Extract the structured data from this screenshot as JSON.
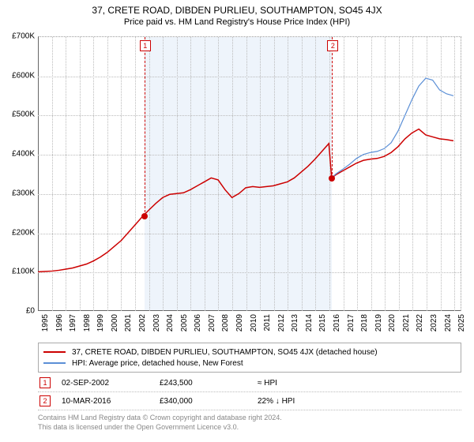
{
  "title_line1": "37, CRETE ROAD, DIBDEN PURLIEU, SOUTHAMPTON, SO45 4JX",
  "title_line2": "Price paid vs. HM Land Registry's House Price Index (HPI)",
  "chart": {
    "type": "line",
    "background_color": "#ffffff",
    "grid_color": "#bbbbbb",
    "band_color": "#eef4fb",
    "ylim": [
      0,
      700000
    ],
    "ytick_step": 100000,
    "ytick_labels": [
      "£0",
      "£100K",
      "£200K",
      "£300K",
      "£400K",
      "£500K",
      "£600K",
      "£700K"
    ],
    "x_years": [
      1995,
      1996,
      1997,
      1998,
      1999,
      2000,
      2001,
      2002,
      2003,
      2004,
      2005,
      2006,
      2007,
      2008,
      2009,
      2010,
      2011,
      2012,
      2013,
      2014,
      2015,
      2016,
      2017,
      2018,
      2019,
      2020,
      2021,
      2022,
      2023,
      2024,
      2025
    ],
    "xlim": [
      1995,
      2025.5
    ],
    "series": [
      {
        "name": "property",
        "color": "#cc0000",
        "width": 1.5,
        "data": [
          [
            1995,
            100000
          ],
          [
            1995.5,
            101000
          ],
          [
            1996,
            102000
          ],
          [
            1996.5,
            104000
          ],
          [
            1997,
            107000
          ],
          [
            1997.5,
            110000
          ],
          [
            1998,
            115000
          ],
          [
            1998.5,
            120000
          ],
          [
            1999,
            128000
          ],
          [
            1999.5,
            138000
          ],
          [
            2000,
            150000
          ],
          [
            2000.5,
            165000
          ],
          [
            2001,
            180000
          ],
          [
            2001.5,
            200000
          ],
          [
            2002,
            220000
          ],
          [
            2002.5,
            240000
          ],
          [
            2003,
            258000
          ],
          [
            2003.5,
            275000
          ],
          [
            2004,
            290000
          ],
          [
            2004.5,
            298000
          ],
          [
            2005,
            300000
          ],
          [
            2005.5,
            302000
          ],
          [
            2006,
            310000
          ],
          [
            2006.5,
            320000
          ],
          [
            2007,
            330000
          ],
          [
            2007.5,
            340000
          ],
          [
            2008,
            335000
          ],
          [
            2008.5,
            310000
          ],
          [
            2009,
            290000
          ],
          [
            2009.5,
            300000
          ],
          [
            2010,
            315000
          ],
          [
            2010.5,
            318000
          ],
          [
            2011,
            316000
          ],
          [
            2011.5,
            318000
          ],
          [
            2012,
            320000
          ],
          [
            2012.5,
            325000
          ],
          [
            2013,
            330000
          ],
          [
            2013.5,
            340000
          ],
          [
            2014,
            355000
          ],
          [
            2014.5,
            370000
          ],
          [
            2015,
            388000
          ],
          [
            2015.5,
            408000
          ],
          [
            2016,
            428000
          ],
          [
            2016.2,
            340000
          ],
          [
            2016.5,
            348000
          ],
          [
            2017,
            358000
          ],
          [
            2017.5,
            368000
          ],
          [
            2018,
            378000
          ],
          [
            2018.5,
            385000
          ],
          [
            2019,
            388000
          ],
          [
            2019.5,
            390000
          ],
          [
            2020,
            395000
          ],
          [
            2020.5,
            405000
          ],
          [
            2021,
            420000
          ],
          [
            2021.5,
            440000
          ],
          [
            2022,
            455000
          ],
          [
            2022.5,
            465000
          ],
          [
            2023,
            450000
          ],
          [
            2023.5,
            445000
          ],
          [
            2024,
            440000
          ],
          [
            2024.5,
            438000
          ],
          [
            2025,
            435000
          ]
        ]
      },
      {
        "name": "hpi",
        "color": "#5b8fd6",
        "width": 1.2,
        "data": [
          [
            2016.2,
            340000
          ],
          [
            2016.5,
            350000
          ],
          [
            2017,
            362000
          ],
          [
            2017.5,
            375000
          ],
          [
            2018,
            390000
          ],
          [
            2018.5,
            400000
          ],
          [
            2019,
            405000
          ],
          [
            2019.5,
            408000
          ],
          [
            2020,
            415000
          ],
          [
            2020.5,
            430000
          ],
          [
            2021,
            460000
          ],
          [
            2021.5,
            500000
          ],
          [
            2022,
            540000
          ],
          [
            2022.5,
            575000
          ],
          [
            2023,
            595000
          ],
          [
            2023.5,
            590000
          ],
          [
            2024,
            565000
          ],
          [
            2024.5,
            555000
          ],
          [
            2025,
            550000
          ]
        ]
      }
    ],
    "sale_markers": [
      {
        "n": "1",
        "x": 2002.67,
        "y": 243500,
        "color": "#cc0000",
        "label_top": true
      },
      {
        "n": "2",
        "x": 2016.19,
        "y": 340000,
        "color": "#cc0000",
        "label_top": true
      }
    ]
  },
  "legend": {
    "items": [
      {
        "color": "#cc0000",
        "label": "37, CRETE ROAD, DIBDEN PURLIEU, SOUTHAMPTON, SO45 4JX (detached house)"
      },
      {
        "color": "#5b8fd6",
        "label": "HPI: Average price, detached house, New Forest"
      }
    ]
  },
  "sales": [
    {
      "n": "1",
      "color": "#cc0000",
      "date": "02-SEP-2002",
      "price": "£243,500",
      "delta": "≈ HPI"
    },
    {
      "n": "2",
      "color": "#cc0000",
      "date": "10-MAR-2016",
      "price": "£340,000",
      "delta": "22% ↓ HPI"
    }
  ],
  "footer_line1": "Contains HM Land Registry data © Crown copyright and database right 2024.",
  "footer_line2": "This data is licensed under the Open Government Licence v3.0."
}
